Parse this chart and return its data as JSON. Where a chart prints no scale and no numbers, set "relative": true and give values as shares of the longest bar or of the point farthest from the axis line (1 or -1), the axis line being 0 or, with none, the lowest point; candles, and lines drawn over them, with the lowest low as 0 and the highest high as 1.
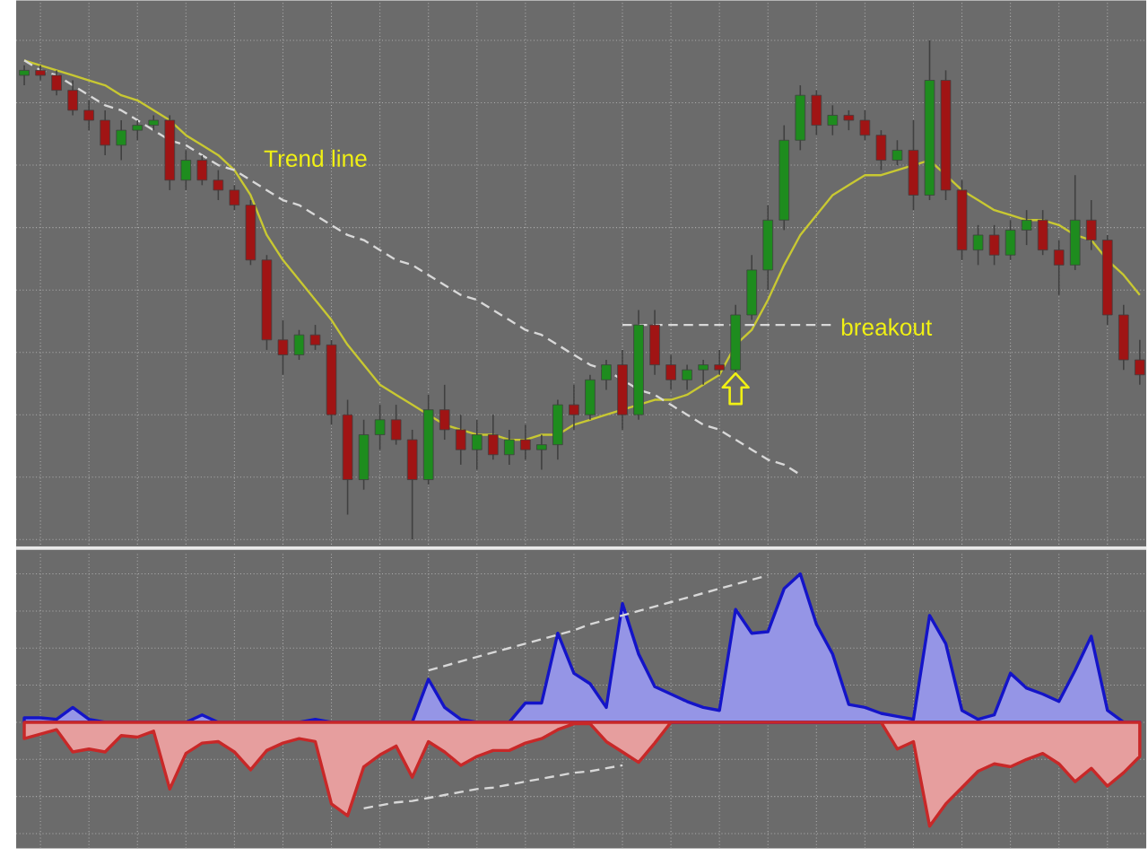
{
  "chart_data": [
    {
      "type": "candlestick",
      "relative": true,
      "grid": true,
      "categories": [
        null,
        null,
        null,
        null,
        null,
        null,
        null,
        null,
        null,
        null,
        null,
        null,
        null,
        null,
        null,
        null,
        null,
        null,
        null,
        null,
        null,
        null,
        null,
        null,
        null,
        null,
        null,
        null,
        null,
        null,
        null,
        null,
        null,
        null,
        null,
        null,
        null,
        null,
        null,
        null,
        null,
        null,
        null,
        null,
        null,
        null,
        null,
        null,
        null,
        null,
        null,
        null,
        null,
        null,
        null,
        null,
        null,
        null,
        null,
        null,
        null,
        null,
        null,
        null,
        null,
        null,
        null,
        null,
        null,
        null
      ],
      "ohlc": [
        [
          0.93,
          0.95,
          0.91,
          0.94
        ],
        [
          0.94,
          0.95,
          0.92,
          0.93
        ],
        [
          0.93,
          0.94,
          0.89,
          0.9
        ],
        [
          0.9,
          0.92,
          0.85,
          0.86
        ],
        [
          0.86,
          0.88,
          0.82,
          0.84
        ],
        [
          0.84,
          0.86,
          0.77,
          0.79
        ],
        [
          0.79,
          0.84,
          0.76,
          0.82
        ],
        [
          0.82,
          0.84,
          0.8,
          0.83
        ],
        [
          0.83,
          0.85,
          0.82,
          0.84
        ],
        [
          0.84,
          0.85,
          0.7,
          0.72
        ],
        [
          0.72,
          0.78,
          0.7,
          0.76
        ],
        [
          0.76,
          0.77,
          0.71,
          0.72
        ],
        [
          0.72,
          0.74,
          0.68,
          0.7
        ],
        [
          0.7,
          0.71,
          0.66,
          0.67
        ],
        [
          0.67,
          0.68,
          0.55,
          0.56
        ],
        [
          0.56,
          0.57,
          0.38,
          0.4
        ],
        [
          0.4,
          0.44,
          0.33,
          0.37
        ],
        [
          0.37,
          0.42,
          0.36,
          0.41
        ],
        [
          0.41,
          0.43,
          0.38,
          0.39
        ],
        [
          0.39,
          0.4,
          0.23,
          0.25
        ],
        [
          0.25,
          0.28,
          0.05,
          0.12
        ],
        [
          0.12,
          0.24,
          0.1,
          0.21
        ],
        [
          0.21,
          0.27,
          0.18,
          0.24
        ],
        [
          0.24,
          0.27,
          0.19,
          0.2
        ],
        [
          0.2,
          0.22,
          0.0,
          0.12
        ],
        [
          0.12,
          0.29,
          0.11,
          0.26
        ],
        [
          0.26,
          0.31,
          0.2,
          0.22
        ],
        [
          0.22,
          0.25,
          0.15,
          0.18
        ],
        [
          0.18,
          0.24,
          0.14,
          0.21
        ],
        [
          0.21,
          0.25,
          0.16,
          0.17
        ],
        [
          0.17,
          0.22,
          0.15,
          0.2
        ],
        [
          0.2,
          0.23,
          0.16,
          0.18
        ],
        [
          0.18,
          0.21,
          0.14,
          0.19
        ],
        [
          0.19,
          0.28,
          0.16,
          0.27
        ],
        [
          0.27,
          0.31,
          0.22,
          0.25
        ],
        [
          0.25,
          0.33,
          0.24,
          0.32
        ],
        [
          0.32,
          0.36,
          0.3,
          0.35
        ],
        [
          0.35,
          0.38,
          0.22,
          0.25
        ],
        [
          0.25,
          0.46,
          0.24,
          0.43
        ],
        [
          0.43,
          0.46,
          0.33,
          0.35
        ],
        [
          0.35,
          0.37,
          0.3,
          0.32
        ],
        [
          0.32,
          0.35,
          0.3,
          0.34
        ],
        [
          0.34,
          0.36,
          0.31,
          0.35
        ],
        [
          0.35,
          0.38,
          0.33,
          0.34
        ],
        [
          0.34,
          0.47,
          0.33,
          0.45
        ],
        [
          0.45,
          0.57,
          0.44,
          0.54
        ],
        [
          0.54,
          0.67,
          0.5,
          0.64
        ],
        [
          0.64,
          0.83,
          0.62,
          0.8
        ],
        [
          0.8,
          0.91,
          0.78,
          0.89
        ],
        [
          0.89,
          0.9,
          0.81,
          0.83
        ],
        [
          0.83,
          0.87,
          0.81,
          0.85
        ],
        [
          0.85,
          0.86,
          0.82,
          0.84
        ],
        [
          0.84,
          0.86,
          0.8,
          0.81
        ],
        [
          0.81,
          0.82,
          0.74,
          0.76
        ],
        [
          0.76,
          0.8,
          0.75,
          0.78
        ],
        [
          0.78,
          0.84,
          0.66,
          0.69
        ],
        [
          0.69,
          1.0,
          0.68,
          0.92
        ],
        [
          0.92,
          0.94,
          0.68,
          0.7
        ],
        [
          0.7,
          0.72,
          0.56,
          0.58
        ],
        [
          0.58,
          0.63,
          0.55,
          0.61
        ],
        [
          0.61,
          0.63,
          0.55,
          0.57
        ],
        [
          0.57,
          0.64,
          0.56,
          0.62
        ],
        [
          0.62,
          0.66,
          0.59,
          0.64
        ],
        [
          0.64,
          0.66,
          0.57,
          0.58
        ],
        [
          0.58,
          0.6,
          0.49,
          0.55
        ],
        [
          0.55,
          0.73,
          0.54,
          0.64
        ],
        [
          0.64,
          0.68,
          0.58,
          0.6
        ],
        [
          0.6,
          0.61,
          0.43,
          0.45
        ],
        [
          0.45,
          0.47,
          0.34,
          0.36
        ],
        [
          0.36,
          0.4,
          0.31,
          0.33
        ]
      ],
      "series": [
        {
          "type": "line",
          "color": "#c8c832",
          "values": [
            0.96,
            0.95,
            0.94,
            0.93,
            0.92,
            0.91,
            0.89,
            0.88,
            0.86,
            0.84,
            0.81,
            0.79,
            0.77,
            0.74,
            0.69,
            0.61,
            0.56,
            0.52,
            0.48,
            0.44,
            0.39,
            0.35,
            0.31,
            0.29,
            0.27,
            0.25,
            0.23,
            0.22,
            0.21,
            0.21,
            0.2,
            0.2,
            0.21,
            0.21,
            0.23,
            0.24,
            0.25,
            0.26,
            0.27,
            0.28,
            0.28,
            0.29,
            0.31,
            0.33,
            0.39,
            0.42,
            0.48,
            0.55,
            0.61,
            0.65,
            0.69,
            0.71,
            0.73,
            0.73,
            0.74,
            0.75,
            0.76,
            0.73,
            0.7,
            0.68,
            0.66,
            0.65,
            0.64,
            0.64,
            0.63,
            0.61,
            0.6,
            0.56,
            0.53,
            0.49
          ]
        },
        {
          "type": "line",
          "color": "#d8d8d8",
          "line_style": "dashed",
          "values": [
            0.96,
            0.94,
            0.93,
            0.91,
            0.89,
            0.87,
            0.86,
            0.84,
            0.82,
            0.8,
            0.79,
            0.77,
            0.75,
            0.74,
            0.72,
            0.7,
            0.68,
            0.67,
            0.65,
            0.63,
            0.61,
            0.6,
            0.58,
            0.56,
            0.55,
            0.53,
            0.51,
            0.49,
            0.48,
            0.46,
            0.44,
            0.42,
            0.41,
            0.39,
            0.37,
            0.35,
            0.34,
            0.32,
            0.3,
            0.29,
            0.27,
            0.25,
            0.23,
            0.22,
            0.2,
            0.18,
            0.16,
            0.15,
            0.13,
            null,
            null,
            null,
            null,
            null,
            null,
            null,
            null,
            null,
            null,
            null,
            null,
            null,
            null,
            null,
            null,
            null,
            null,
            null,
            null,
            null
          ]
        },
        {
          "type": "line",
          "color": "#d8d8d8",
          "line_style": "dashed",
          "values": [
            null,
            null,
            null,
            null,
            null,
            null,
            null,
            null,
            null,
            null,
            null,
            null,
            null,
            null,
            null,
            null,
            null,
            null,
            null,
            null,
            null,
            null,
            null,
            null,
            null,
            null,
            null,
            null,
            null,
            null,
            null,
            null,
            null,
            null,
            null,
            null,
            null,
            0.43,
            0.43,
            0.43,
            0.43,
            0.43,
            0.43,
            0.43,
            0.43,
            0.43,
            0.43,
            0.43,
            0.43,
            0.43,
            0.43,
            null,
            null,
            null,
            null,
            null,
            null,
            null,
            null,
            null,
            null,
            null,
            null,
            null,
            null,
            null,
            null,
            null,
            null,
            null
          ]
        }
      ],
      "annotations": [
        "Trend line",
        "breakout"
      ]
    },
    {
      "type": "area",
      "relative": true,
      "grid": true,
      "categories": [
        null,
        null,
        null,
        null,
        null,
        null,
        null,
        null,
        null,
        null,
        null,
        null,
        null,
        null,
        null,
        null,
        null,
        null,
        null,
        null,
        null,
        null,
        null,
        null,
        null,
        null,
        null,
        null,
        null,
        null,
        null,
        null,
        null,
        null,
        null,
        null,
        null,
        null,
        null,
        null,
        null,
        null,
        null,
        null,
        null,
        null,
        null,
        null,
        null,
        null,
        null,
        null,
        null,
        null,
        null,
        null,
        null,
        null,
        null,
        null,
        null,
        null,
        null,
        null,
        null,
        null,
        null,
        null,
        null,
        null
      ],
      "series": [
        {
          "color": "#1414c8",
          "values": [
            0.03,
            0.03,
            0.02,
            0.1,
            0.02,
            0,
            0,
            0,
            0,
            0,
            0,
            0.05,
            0,
            0,
            0,
            0,
            0,
            0,
            0.02,
            0,
            0,
            0,
            0,
            0,
            0,
            0.29,
            0.1,
            0.02,
            0,
            0,
            0,
            0.13,
            0.13,
            0.6,
            0.33,
            0.26,
            0.1,
            0.8,
            0.46,
            0.24,
            0.19,
            0.14,
            0.1,
            0.08,
            0.76,
            0.6,
            0.61,
            0.9,
            1.0,
            0.66,
            0.46,
            0.12,
            0.1,
            0.06,
            0.04,
            0.02,
            0.72,
            0.53,
            0.08,
            0.02,
            0.05,
            0.33,
            0.23,
            0.19,
            0.14,
            0.35,
            0.58,
            0.08,
            0,
            0
          ]
        },
        {
          "color": "#c82828",
          "values": [
            -0.11,
            -0.08,
            -0.05,
            -0.2,
            -0.18,
            -0.2,
            -0.09,
            -0.1,
            -0.06,
            -0.45,
            -0.21,
            -0.14,
            -0.13,
            -0.2,
            -0.32,
            -0.19,
            -0.14,
            -0.11,
            -0.13,
            -0.55,
            -0.63,
            -0.3,
            -0.22,
            -0.16,
            -0.37,
            -0.13,
            -0.2,
            -0.29,
            -0.23,
            -0.19,
            -0.19,
            -0.14,
            -0.11,
            -0.05,
            -0.01,
            -0.01,
            -0.13,
            -0.2,
            -0.27,
            -0.14,
            0,
            0,
            0,
            0,
            0,
            0,
            0,
            0,
            0,
            0,
            0,
            0,
            0,
            0,
            -0.18,
            -0.13,
            -0.7,
            -0.55,
            -0.44,
            -0.33,
            -0.28,
            -0.3,
            -0.25,
            -0.21,
            -0.28,
            -0.4,
            -0.31,
            -0.43,
            -0.34,
            -0.23
          ]
        },
        {
          "type": "line",
          "color": "#d8d8d8",
          "line_style": "dashed",
          "values": [
            null,
            null,
            null,
            null,
            null,
            null,
            null,
            null,
            null,
            null,
            null,
            null,
            null,
            null,
            null,
            null,
            null,
            null,
            null,
            null,
            null,
            null,
            null,
            null,
            null,
            0.35,
            0.38,
            0.41,
            0.44,
            0.47,
            0.5,
            0.53,
            0.56,
            0.59,
            0.62,
            0.66,
            0.69,
            0.72,
            0.75,
            0.78,
            0.81,
            0.84,
            0.87,
            0.9,
            0.93,
            0.96,
            0.99,
            null,
            null,
            null,
            null,
            null,
            null,
            null,
            null,
            null,
            null,
            null,
            null,
            null,
            null,
            null,
            null,
            null,
            null,
            null,
            null,
            null,
            null,
            null
          ]
        },
        {
          "type": "line",
          "color": "#d8d8d8",
          "line_style": "dashed",
          "values": [
            null,
            null,
            null,
            null,
            null,
            null,
            null,
            null,
            null,
            null,
            null,
            null,
            null,
            null,
            null,
            null,
            null,
            null,
            null,
            null,
            null,
            -0.58,
            -0.56,
            -0.54,
            -0.53,
            -0.51,
            -0.49,
            -0.47,
            -0.45,
            -0.44,
            -0.42,
            -0.4,
            -0.38,
            -0.36,
            -0.34,
            -0.33,
            -0.31,
            -0.29,
            null,
            null,
            null,
            null,
            null,
            null,
            null,
            null,
            null,
            null,
            null,
            null,
            null,
            null,
            null,
            null,
            null,
            null,
            null,
            null,
            null,
            null,
            null,
            null,
            null,
            null,
            null,
            null,
            null,
            null,
            null,
            null
          ]
        }
      ]
    }
  ]
}
